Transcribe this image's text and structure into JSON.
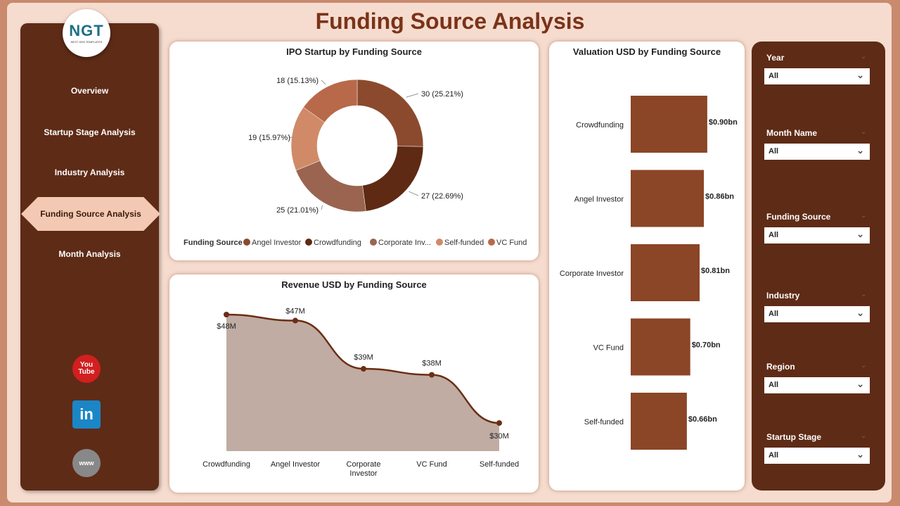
{
  "header": {
    "title": "Funding Source Analysis"
  },
  "logo": {
    "text": "NGT",
    "subtitle": "NEXT GEN TEMPLATES"
  },
  "nav": {
    "items": [
      {
        "label": "Overview"
      },
      {
        "label": "Startup Stage Analysis"
      },
      {
        "label": "Industry Analysis"
      },
      {
        "label": "Funding Source Analysis",
        "active": true
      },
      {
        "label": "Month Analysis"
      }
    ]
  },
  "social": [
    {
      "icon": "youtube-icon",
      "label": "You Tube"
    },
    {
      "icon": "linkedin-icon",
      "label": "in"
    },
    {
      "icon": "globe-icon",
      "label": "www"
    }
  ],
  "slicers": [
    {
      "label": "Year",
      "value": "All"
    },
    {
      "label": "Month Name",
      "value": "All"
    },
    {
      "label": "Funding Source",
      "value": "All"
    },
    {
      "label": "Industry",
      "value": "All"
    },
    {
      "label": "Region",
      "value": "All"
    },
    {
      "label": "Startup Stage",
      "value": "All"
    }
  ],
  "chart_data": [
    {
      "type": "pie",
      "title": "IPO Startup by Funding Source",
      "legend_title": "Funding Source",
      "legend_position": "bottom",
      "legend": [
        "Angel Investor",
        "Crowdfunding",
        "Corporate Inv...",
        "Self-funded",
        "VC Fund"
      ],
      "slices": [
        {
          "name": "Angel Investor",
          "value": 30,
          "label": "30 (25.21%)",
          "color": "#8b4a2e"
        },
        {
          "name": "Crowdfunding",
          "value": 27,
          "label": "27 (22.69%)",
          "color": "#5e2a14"
        },
        {
          "name": "Corporate Investor",
          "value": 25,
          "label": "25 (21.01%)",
          "color": "#9a6450"
        },
        {
          "name": "Self-funded",
          "value": 19,
          "label": "19 (15.97%)",
          "color": "#d08a68"
        },
        {
          "name": "VC Fund",
          "value": 18,
          "label": "18 (15.13%)",
          "color": "#b8694a"
        }
      ]
    },
    {
      "type": "area",
      "title": "Revenue USD by Funding Source",
      "categories": [
        "Crowdfunding",
        "Angel Investor",
        "Corporate Investor",
        "VC Fund",
        "Self-funded"
      ],
      "values": [
        48,
        47,
        39,
        38,
        30
      ],
      "labels": [
        "$48M",
        "$47M",
        "$39M",
        "$38M",
        "$30M"
      ],
      "unit": "M USD",
      "color": "#6b2e16",
      "fill": "#c0aca3"
    },
    {
      "type": "bar",
      "orientation": "horizontal",
      "title": "Valuation USD by Funding Source",
      "categories": [
        "Crowdfunding",
        "Angel Investor",
        "Corporate Investor",
        "VC Fund",
        "Self-funded"
      ],
      "values": [
        0.9,
        0.86,
        0.81,
        0.7,
        0.66
      ],
      "labels": [
        "$0.90bn",
        "$0.86bn",
        "$0.81bn",
        "$0.70bn",
        "$0.66bn"
      ],
      "unit": "bn USD",
      "color": "#8b4527"
    }
  ]
}
